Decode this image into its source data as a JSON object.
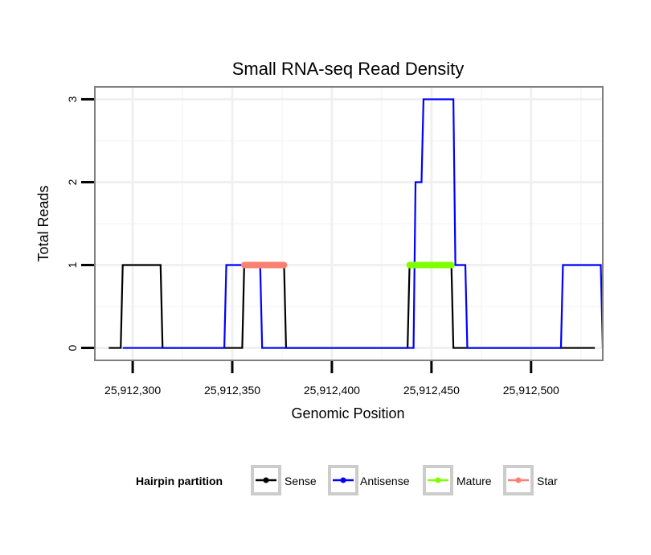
{
  "chart_data": {
    "type": "line",
    "title": "Small RNA-seq Read Density",
    "xlabel": "Genomic Position",
    "ylabel": "Total Reads",
    "xlim": [
      25912281,
      25912536
    ],
    "ylim": [
      -0.15,
      3.15
    ],
    "x_ticks": [
      25912300,
      25912350,
      25912400,
      25912450,
      25912500
    ],
    "x_tick_labels": [
      "25,912,300",
      "25,912,350",
      "25,912,400",
      "25,912,450",
      "25,912,500"
    ],
    "y_ticks": [
      0,
      1,
      2,
      3
    ],
    "y_tick_labels": [
      "0",
      "1",
      "2",
      "3"
    ],
    "grid": true,
    "legend": {
      "title": "Hairpin partition",
      "position": "bottom",
      "entries": [
        {
          "label": "Sense",
          "color": "#000000"
        },
        {
          "label": "Antisense",
          "color": "#0000ff"
        },
        {
          "label": "Mature",
          "color": "#7fff00"
        },
        {
          "label": "Star",
          "color": "#fa8072"
        }
      ]
    },
    "series": [
      {
        "name": "Sense",
        "color": "#000000",
        "x": [
          25912288,
          25912294,
          25912295,
          25912314,
          25912315,
          25912355,
          25912356,
          25912376,
          25912377,
          25912438,
          25912439,
          25912460,
          25912461,
          25912532
        ],
        "y": [
          0,
          0,
          1,
          1,
          0,
          0,
          1,
          1,
          0,
          0,
          1,
          1,
          0,
          0
        ]
      },
      {
        "name": "Antisense",
        "color": "#0000ff",
        "x": [
          25912295,
          25912346,
          25912347,
          25912364,
          25912365,
          25912441,
          25912442,
          25912445,
          25912446,
          25912461,
          25912462,
          25912467,
          25912468,
          25912515,
          25912516,
          25912535,
          25912536
        ],
        "y": [
          0,
          0,
          1,
          1,
          0,
          0,
          2,
          2,
          3,
          3,
          1,
          1,
          0,
          0,
          1,
          1,
          0
        ]
      },
      {
        "name": "Mature",
        "color": "#7fff00",
        "x": [
          25912439,
          25912460
        ],
        "y": [
          1,
          1
        ]
      },
      {
        "name": "Star",
        "color": "#fa8072",
        "x": [
          25912356,
          25912376
        ],
        "y": [
          1,
          1
        ]
      }
    ]
  }
}
